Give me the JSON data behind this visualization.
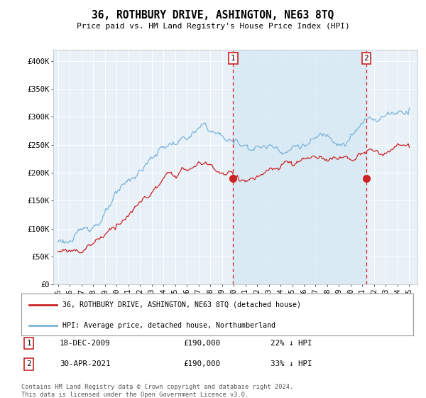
{
  "title": "36, ROTHBURY DRIVE, ASHINGTON, NE63 8TQ",
  "subtitle": "Price paid vs. HM Land Registry's House Price Index (HPI)",
  "hpi_label": "HPI: Average price, detached house, Northumberland",
  "price_label": "36, ROTHBURY DRIVE, ASHINGTON, NE63 8TQ (detached house)",
  "footer": "Contains HM Land Registry data © Crown copyright and database right 2024.\nThis data is licensed under the Open Government Licence v3.0.",
  "hpi_color": "#7ab4d8",
  "price_color": "#cc2222",
  "shade_color": "#d8eaf5",
  "marker1_date_x": 2009.96,
  "marker2_date_x": 2021.33,
  "marker1_price": 190000,
  "marker2_price": 190000,
  "ylim": [
    0,
    420000
  ],
  "xlim_start": 1994.6,
  "xlim_end": 2025.7,
  "background_plot": "#e8f0f8",
  "background_fig": "#ffffff",
  "grid_color": "#ffffff",
  "yticks": [
    0,
    50000,
    100000,
    150000,
    200000,
    250000,
    300000,
    350000,
    400000
  ],
  "ytick_labels": [
    "£0",
    "£50K",
    "£100K",
    "£150K",
    "£200K",
    "£250K",
    "£300K",
    "£350K",
    "£400K"
  ],
  "xticks": [
    1995,
    1996,
    1997,
    1998,
    1999,
    2000,
    2001,
    2002,
    2003,
    2004,
    2005,
    2006,
    2007,
    2008,
    2009,
    2010,
    2011,
    2012,
    2013,
    2014,
    2015,
    2016,
    2017,
    2018,
    2019,
    2020,
    2021,
    2022,
    2023,
    2024,
    2025
  ]
}
